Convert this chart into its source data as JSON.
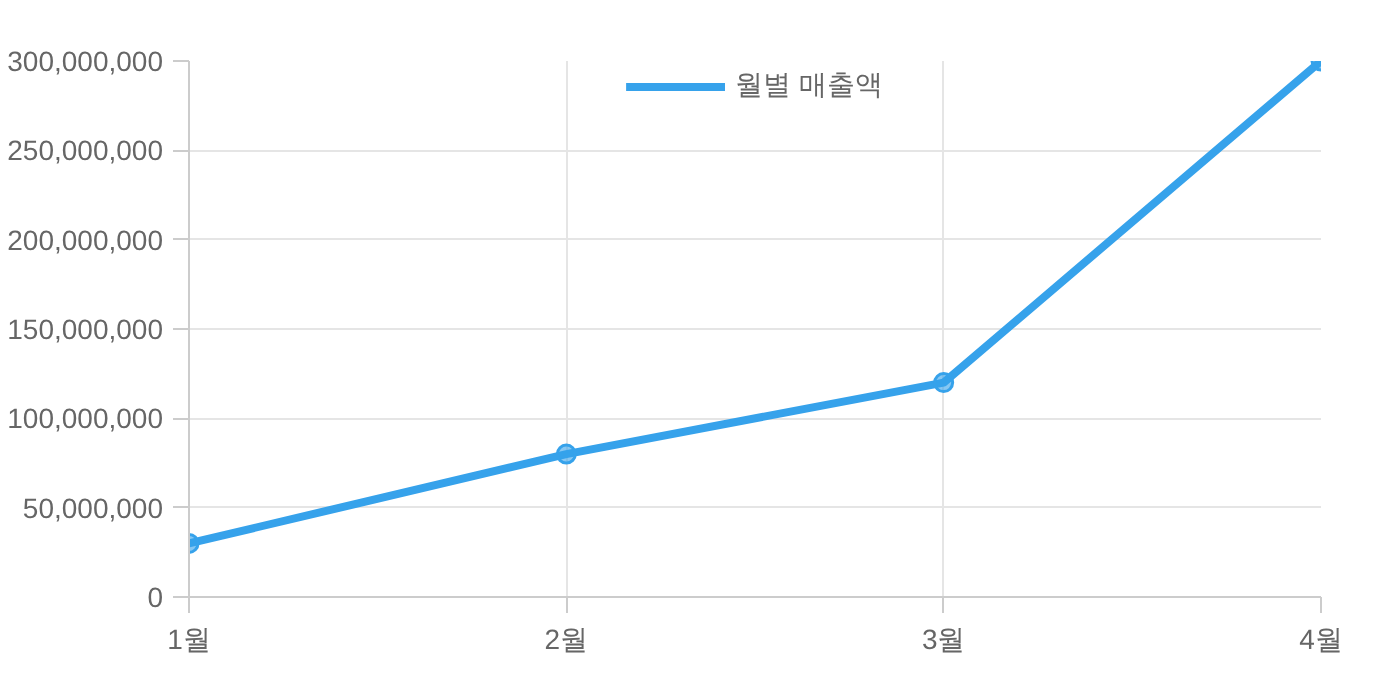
{
  "chart_data": {
    "type": "line",
    "categories": [
      "1월",
      "2월",
      "3월",
      "4월"
    ],
    "series": [
      {
        "name": "월별 매출액",
        "color": "#36a2eb",
        "values": [
          30000000,
          80000000,
          120000000,
          300000000
        ]
      }
    ],
    "ylim": [
      0,
      300000000
    ],
    "yticks": [
      {
        "value": 0,
        "label": "0"
      },
      {
        "value": 50000000,
        "label": "50,000,000"
      },
      {
        "value": 100000000,
        "label": "100,000,000"
      },
      {
        "value": 150000000,
        "label": "150,000,000"
      },
      {
        "value": 200000000,
        "label": "200,000,000"
      },
      {
        "value": 250000000,
        "label": "250,000,000"
      },
      {
        "value": 300000000,
        "label": "300,000,000"
      }
    ],
    "grid": true,
    "legend": "top",
    "marker": "circle",
    "line_style": "solid"
  }
}
